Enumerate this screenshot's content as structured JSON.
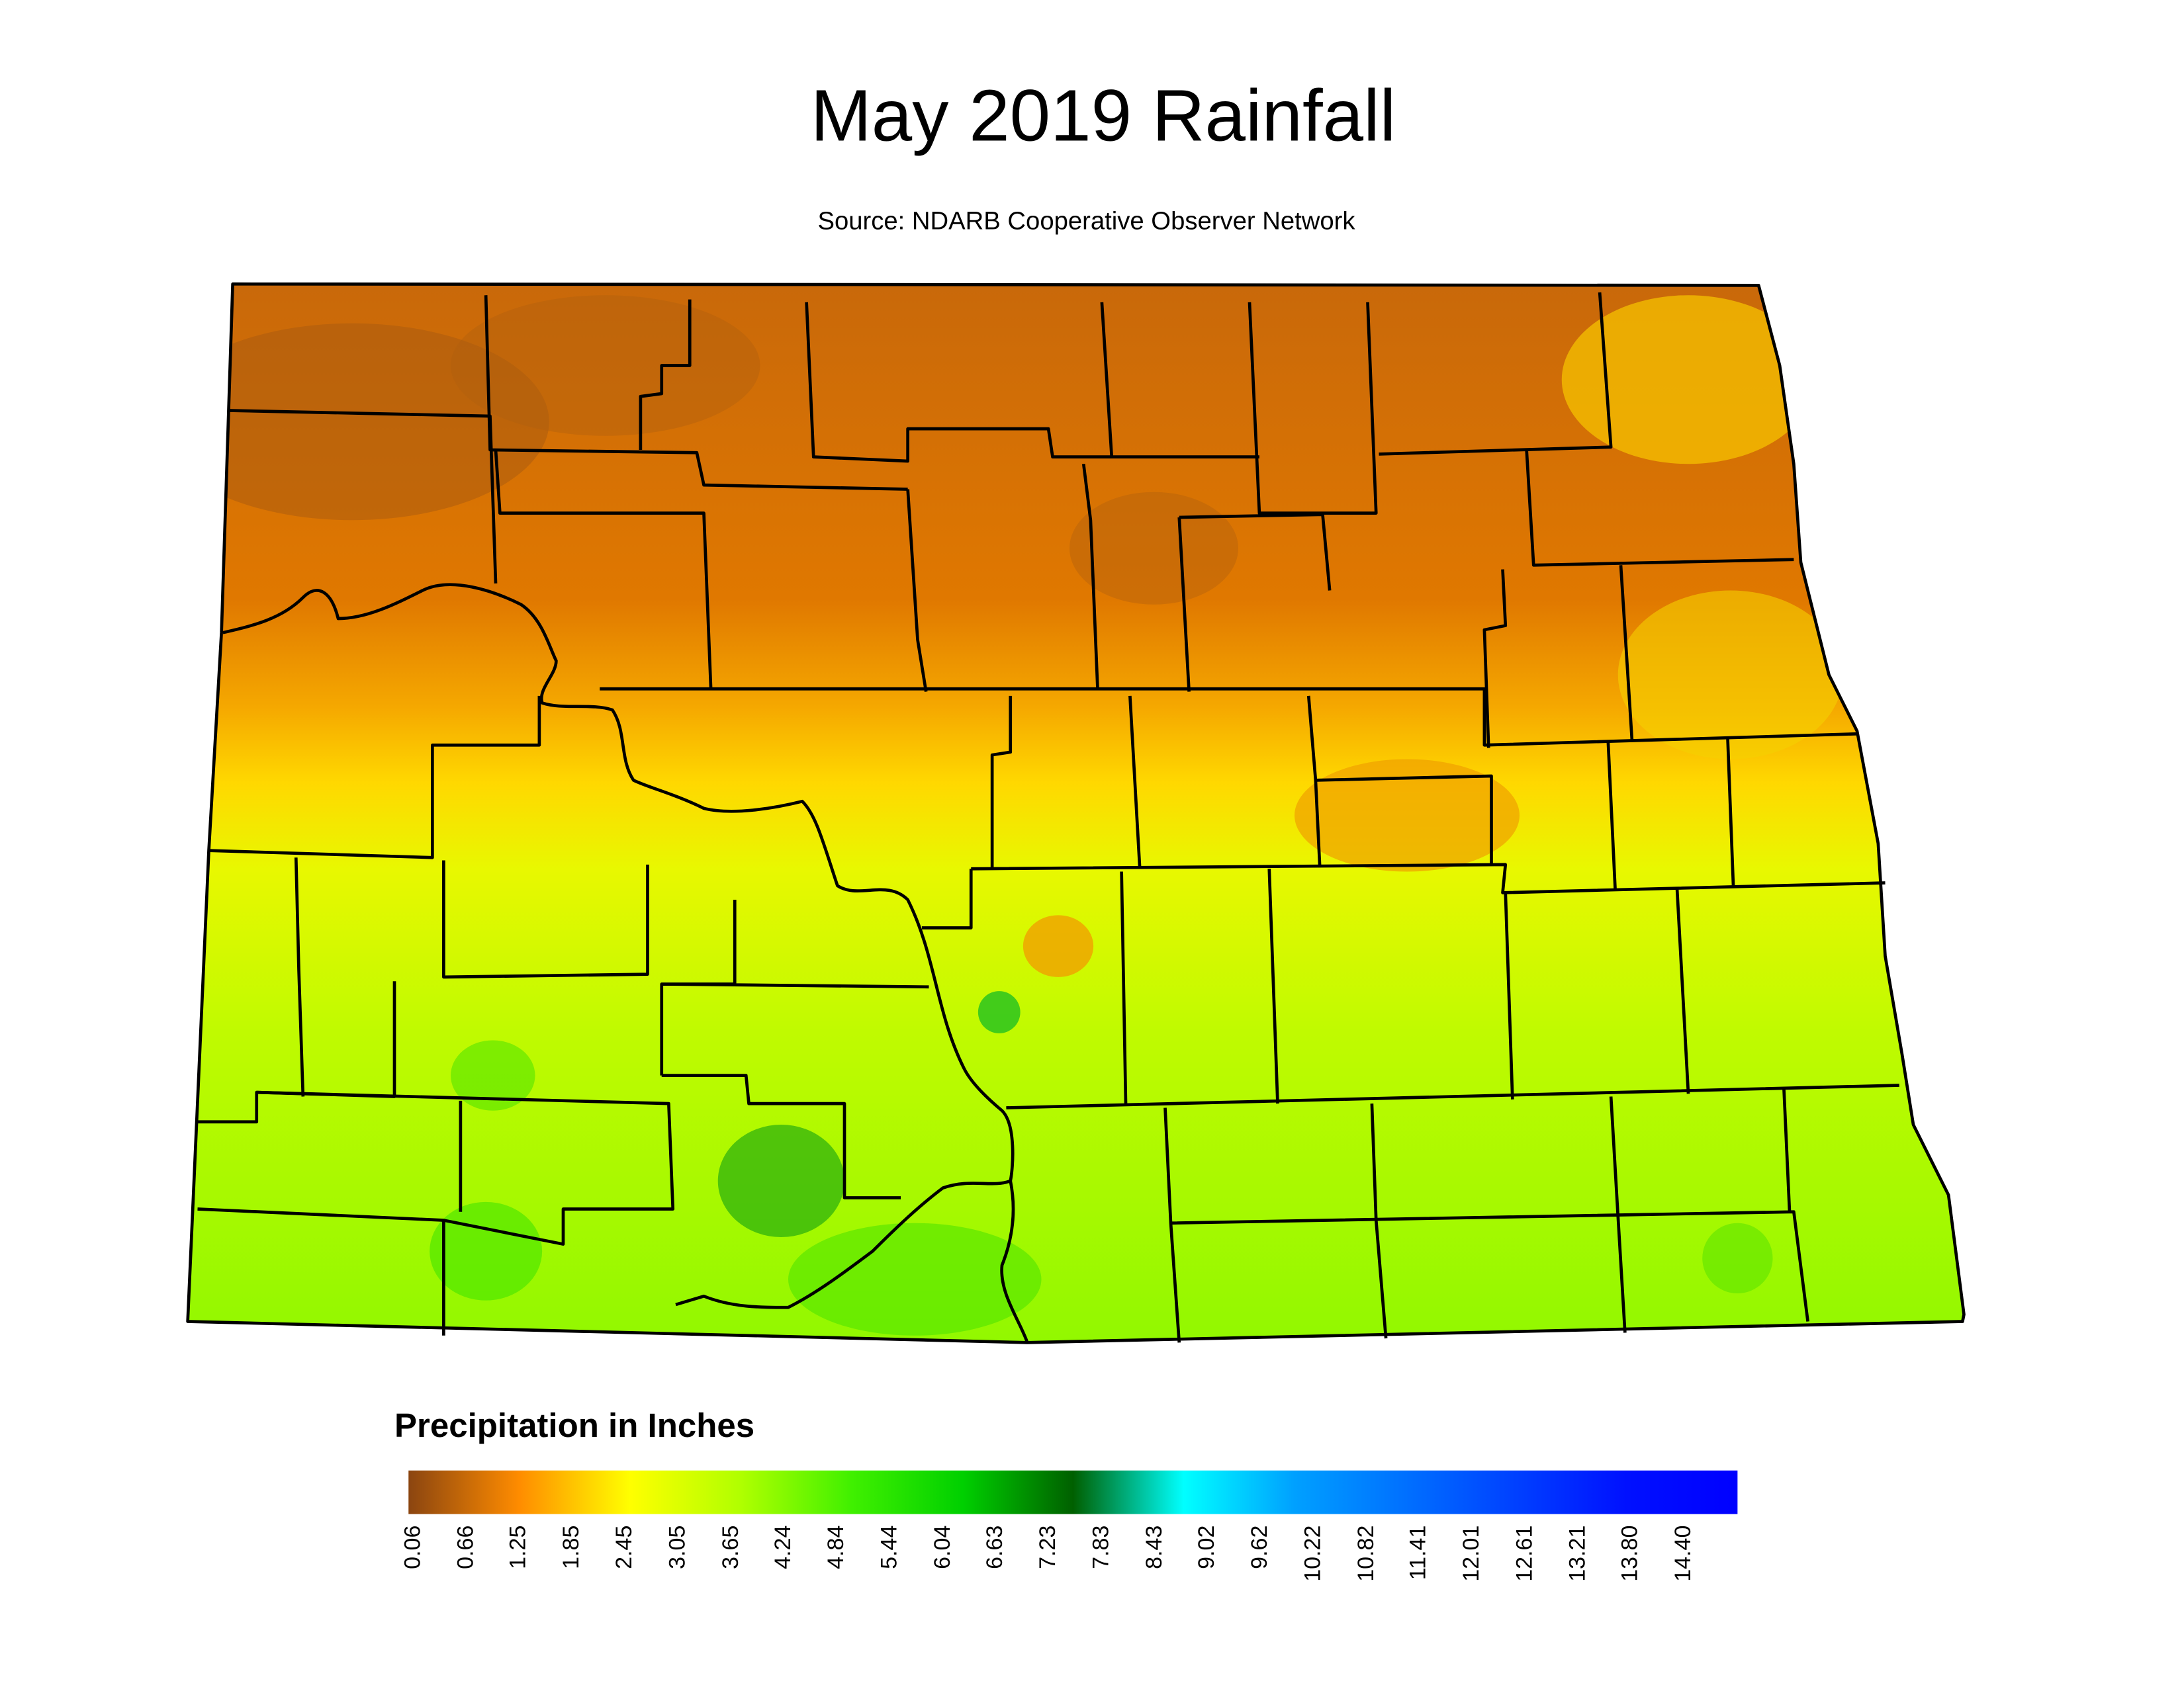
{
  "title": "May 2019 Rainfall",
  "subtitle": "Source: NDARB Cooperative Observer Network",
  "legend": {
    "title": "Precipitation in Inches",
    "lim": [
      0,
      15
    ],
    "colors": [
      "#8b4510",
      "#ff8c00",
      "#ffff00",
      "#b0ff00",
      "#40f000",
      "#00d000",
      "#006000",
      "#00ffff",
      "#00a0ff",
      "#0070ff",
      "#0040ff",
      "#0010ff",
      "#0000ff"
    ],
    "ticks": [
      0.06,
      0.66,
      1.25,
      1.85,
      2.45,
      3.05,
      3.65,
      4.24,
      4.84,
      5.44,
      6.04,
      6.63,
      7.23,
      7.83,
      8.43,
      9.02,
      9.62,
      10.22,
      10.82,
      11.41,
      12.01,
      12.61,
      13.21,
      {
        "value": 13.8,
        "label": "13.80"
      },
      {
        "value": 14.4,
        "label": "14.40"
      }
    ]
  }
}
